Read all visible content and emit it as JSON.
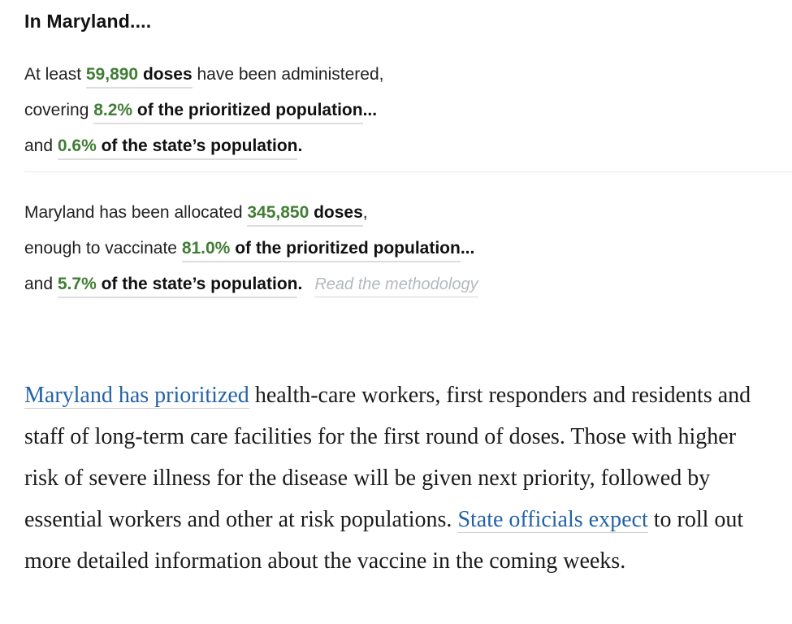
{
  "colors": {
    "green": "#417d35",
    "link_blue": "#2463a6",
    "muted_gray": "#b5b9bd"
  },
  "heading": "In Maryland....",
  "administered": {
    "lines": [
      {
        "pre": "At least ",
        "value": "59,890",
        "bold": " doses",
        "tail": " have been administered,",
        "tail_bold": false
      },
      {
        "pre": "covering ",
        "value": "8.2%",
        "bold": " of the prioritized population",
        "tail": "...",
        "tail_bold": true
      },
      {
        "pre": "and ",
        "value": "0.6%",
        "bold": " of the state’s population",
        "tail": ".",
        "tail_bold": true
      }
    ]
  },
  "allocated": {
    "lines": [
      {
        "pre": "Maryland has been allocated ",
        "value": "345,850",
        "bold": " doses",
        "tail": ",",
        "tail_bold": false
      },
      {
        "pre": "enough to vaccinate ",
        "value": "81.0%",
        "bold": " of the prioritized population",
        "tail": "...",
        "tail_bold": true
      },
      {
        "pre": "and ",
        "value": "5.7%",
        "bold": " of the state’s population",
        "tail": ".",
        "tail_bold": true,
        "methodology": "Read the methodology"
      }
    ]
  },
  "paragraph": {
    "segments": [
      {
        "text": "Maryland has prioritized",
        "link": true
      },
      {
        "text": " health-care workers, first responders and residents and staff of long-term care facilities for the first round of doses. Those with higher risk of severe illness for the disease will be given next priority, followed by essential workers and other at risk populations. ",
        "link": false
      },
      {
        "text": "State officials expect",
        "link": true
      },
      {
        "text": " to roll out more detailed information about the vaccine in the coming weeks.",
        "link": false
      }
    ]
  }
}
